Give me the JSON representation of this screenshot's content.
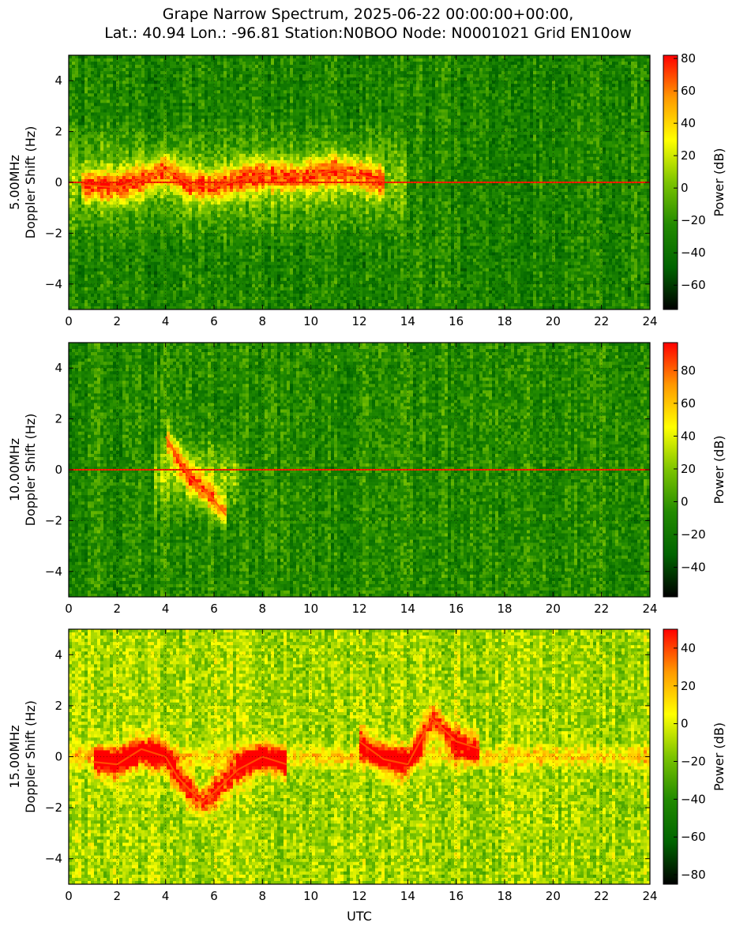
{
  "figure": {
    "title_line1": "Grape Narrow Spectrum, 2025-06-22 00:00:00+00:00,",
    "title_line2": "Lat.: 40.94 Lon.: -96.81 Station:N0BOO Node: N0001021 Grid EN10ow"
  },
  "chart_data": [
    {
      "type": "heatmap",
      "band_label": "5.00MHz",
      "ylabel": "Doppler Shift (Hz)",
      "xlabel": "",
      "xlim": [
        0,
        24
      ],
      "ylim": [
        -5,
        5
      ],
      "xticks": [
        0,
        2,
        4,
        6,
        8,
        10,
        12,
        14,
        16,
        18,
        20,
        22,
        24
      ],
      "yticks": [
        -4,
        -2,
        0,
        2,
        4
      ],
      "grid": true,
      "colorbar": {
        "label": "Power (dB)",
        "range": [
          -75,
          82
        ],
        "ticks": [
          -60,
          -40,
          -20,
          0,
          20,
          40,
          60,
          80
        ]
      },
      "colormap": [
        "#000000",
        "#006400",
        "#228b00",
        "#7cc400",
        "#ffff00",
        "#ff9900",
        "#ff0000"
      ],
      "background_level": 0.3,
      "features": [
        {
          "kind": "carrier",
          "x": [
            0,
            24
          ],
          "y": 0
        },
        {
          "kind": "doppler_trace",
          "x": [
            0.5,
            2,
            3,
            4,
            5,
            6,
            7,
            8,
            9,
            10,
            11,
            12,
            13
          ],
          "y": [
            -0.1,
            -0.2,
            0.1,
            0.5,
            -0.1,
            -0.2,
            0.1,
            0.3,
            0.2,
            0.3,
            0.5,
            0.3,
            0.05
          ]
        },
        {
          "kind": "spread",
          "x": [
            0,
            14
          ],
          "y": [
            -2.5,
            2.5
          ]
        }
      ]
    },
    {
      "type": "heatmap",
      "band_label": "10.00MHz",
      "ylabel": "Doppler Shift (Hz)",
      "xlabel": "",
      "xlim": [
        0,
        24
      ],
      "ylim": [
        -5,
        5
      ],
      "xticks": [
        0,
        2,
        4,
        6,
        8,
        10,
        12,
        14,
        16,
        18,
        20,
        22,
        24
      ],
      "yticks": [
        -4,
        -2,
        0,
        2,
        4
      ],
      "grid": true,
      "colorbar": {
        "label": "Power (dB)",
        "range": [
          -58,
          97
        ],
        "ticks": [
          -40,
          -20,
          0,
          20,
          40,
          60,
          80
        ]
      },
      "colormap": [
        "#000000",
        "#006400",
        "#228b00",
        "#7cc400",
        "#ffff00",
        "#ff9900",
        "#ff0000"
      ],
      "background_level": 0.32,
      "features": [
        {
          "kind": "carrier",
          "x": [
            0,
            24
          ],
          "y": 0
        },
        {
          "kind": "doppler_trace",
          "x": [
            4,
            4.5,
            5,
            6,
            6.5
          ],
          "y": [
            1.3,
            0.5,
            -0.3,
            -1.2,
            -1.8
          ]
        },
        {
          "kind": "spread",
          "x": [
            3.5,
            7
          ],
          "y": [
            -2,
            1.5
          ]
        }
      ]
    },
    {
      "type": "heatmap",
      "band_label": "15.00MHz",
      "ylabel": "Doppler Shift (Hz)",
      "xlabel": "UTC",
      "xlim": [
        0,
        24
      ],
      "ylim": [
        -5,
        5
      ],
      "xticks": [
        0,
        2,
        4,
        6,
        8,
        10,
        12,
        14,
        16,
        18,
        20,
        22,
        24
      ],
      "yticks": [
        -4,
        -2,
        0,
        2,
        4
      ],
      "grid": true,
      "colorbar": {
        "label": "Power (dB)",
        "range": [
          -85,
          50
        ],
        "ticks": [
          -80,
          -60,
          -40,
          -20,
          0,
          20,
          40
        ]
      },
      "colormap": [
        "#000000",
        "#006400",
        "#228b00",
        "#7cc400",
        "#ffff00",
        "#ff9900",
        "#ff0000"
      ],
      "background_level": 0.55,
      "features": [
        {
          "kind": "doppler_trace",
          "x": [
            1,
            2,
            3,
            4,
            4.5,
            5,
            5.5,
            6,
            7,
            8,
            9
          ],
          "y": [
            -0.2,
            -0.3,
            0.3,
            0.0,
            -0.8,
            -1.3,
            -1.8,
            -1.4,
            -0.5,
            0.0,
            -0.3
          ]
        },
        {
          "kind": "doppler_trace",
          "x": [
            12,
            13,
            14,
            15,
            16,
            17
          ],
          "y": [
            0.6,
            -0.1,
            -0.3,
            1.5,
            0.6,
            0.3
          ]
        },
        {
          "kind": "spread",
          "x": [
            0,
            24
          ],
          "y": [
            -0.6,
            0.6
          ]
        }
      ]
    }
  ]
}
